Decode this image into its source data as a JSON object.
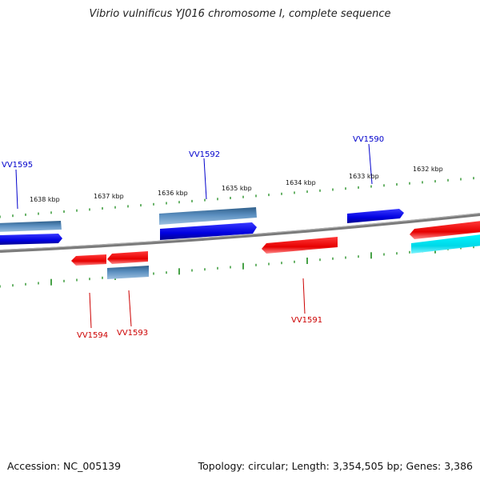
{
  "title": "Vibrio vulnificus YJ016 chromosome I, complete sequence",
  "footer": {
    "accession": "Accession: NC_005139",
    "summary": "Topology: circular; Length: 3,354,505 bp; Genes: 3,386"
  },
  "colors": {
    "backbone": "#7f7f7f",
    "tick": "#1a8a1a",
    "forward_gene": "#0000e8",
    "forward_cds": "#4a7fb0",
    "reverse_gene": "#e80000",
    "reverse_other": "#00e8f0",
    "label_forward": "#0000cc",
    "label_reverse": "#cc0000"
  },
  "scale_labels": [
    "1638 kbp",
    "1637 kbp",
    "1636 kbp",
    "1635 kbp",
    "1634 kbp",
    "1633 kbp",
    "1632 kbp"
  ],
  "gene_labels": {
    "top": [
      "VV1595",
      "VV1592",
      "VV1590"
    ],
    "bottom": [
      "VV1594",
      "VV1593",
      "VV1591"
    ]
  }
}
